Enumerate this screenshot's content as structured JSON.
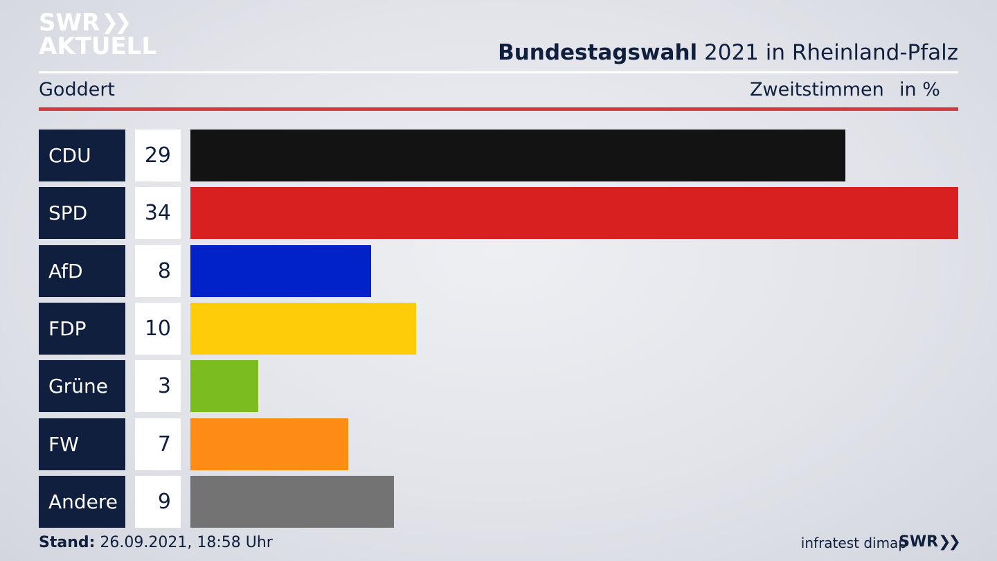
{
  "brand": {
    "logo_line1": "SWR",
    "logo_line2": "AKTUELL",
    "chevron_icon": "double-chevron-right-icon"
  },
  "header": {
    "title_bold": "Bundestagswahl",
    "title_rest": " 2021 in Rheinland-Pfalz",
    "region": "Goddert",
    "vote_type": "Zweitstimmen",
    "unit": "in %"
  },
  "colors": {
    "accent_rule": "#d23c32",
    "label_box": "#0f1f3d"
  },
  "chart_data": {
    "type": "bar",
    "orientation": "horizontal",
    "categories": [
      "CDU",
      "SPD",
      "AfD",
      "FDP",
      "Grüne",
      "FW",
      "Andere"
    ],
    "values": [
      29,
      34,
      8,
      10,
      3,
      7,
      9
    ],
    "colors": [
      "#131313",
      "#d7201f",
      "#0022c8",
      "#ffcc0a",
      "#7bbd1f",
      "#ff8c17",
      "#737373"
    ],
    "value_labels": [
      "29",
      "34",
      "8",
      "10",
      "3",
      "7",
      "9"
    ],
    "unit": "in %",
    "xlim": [
      0,
      34
    ],
    "grid": false,
    "legend": "none"
  },
  "footer": {
    "stand_label": "Stand:",
    "stand_value": " 26.09.2021, 18:58 Uhr",
    "source": "infratest dimap",
    "logo": "SWR"
  }
}
